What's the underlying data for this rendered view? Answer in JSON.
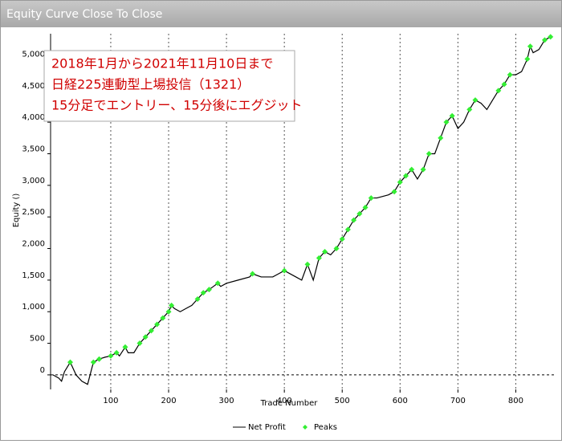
{
  "window_title": "Equity Curve Close To Close",
  "chart_data": {
    "type": "line",
    "annotation": [
      "2018年1月から2021年11月10日まで",
      "日経225連動型上場投信（1321）",
      "15分足でエントリー、15分後にエグジット"
    ],
    "xlabel": "Trade Number",
    "ylabel": "Equity ()",
    "xlim": [
      -4,
      866
    ],
    "ylim": [
      -230,
      5400
    ],
    "xticks": [
      100,
      200,
      300,
      400,
      500,
      600,
      700,
      800
    ],
    "yticks": [
      0,
      500,
      {
        "value": 1000,
        "label": "1,000"
      },
      {
        "value": 1500,
        "label": "1,500"
      },
      {
        "value": 2000,
        "label": "2,000"
      },
      {
        "value": 2500,
        "label": "2,500"
      },
      {
        "value": 3000,
        "label": "3,000"
      },
      {
        "value": 3500,
        "label": "3,500"
      },
      {
        "value": 4000,
        "label": "4,000"
      },
      {
        "value": 4500,
        "label": "4,500"
      },
      {
        "value": 5000,
        "label": "5,000"
      }
    ],
    "grid": "x",
    "series": [
      {
        "name": "Net Profit",
        "type": "line",
        "color": "#000000",
        "x": [
          0,
          10,
          15,
          20,
          30,
          40,
          50,
          60,
          70,
          80,
          90,
          100,
          110,
          115,
          125,
          130,
          140,
          150,
          160,
          170,
          180,
          190,
          200,
          205,
          210,
          220,
          230,
          240,
          250,
          260,
          270,
          285,
          290,
          300,
          320,
          340,
          345,
          360,
          380,
          390,
          400,
          420,
          430,
          440,
          450,
          460,
          470,
          480,
          490,
          500,
          510,
          520,
          530,
          540,
          550,
          560,
          580,
          590,
          600,
          610,
          620,
          630,
          640,
          650,
          660,
          670,
          680,
          690,
          700,
          710,
          720,
          730,
          740,
          750,
          760,
          770,
          780,
          790,
          800,
          810,
          820,
          825,
          830,
          840,
          850,
          860
        ],
        "values": [
          0,
          -50,
          -100,
          50,
          200,
          0,
          -100,
          -150,
          200,
          250,
          280,
          300,
          350,
          300,
          440,
          350,
          350,
          500,
          600,
          700,
          800,
          900,
          1000,
          1100,
          1050,
          1000,
          1050,
          1100,
          1200,
          1300,
          1350,
          1450,
          1400,
          1450,
          1500,
          1550,
          1600,
          1550,
          1550,
          1600,
          1650,
          1550,
          1500,
          1750,
          1500,
          1850,
          1950,
          1900,
          2000,
          2150,
          2300,
          2450,
          2550,
          2650,
          2800,
          2800,
          2850,
          2900,
          3050,
          3150,
          3250,
          3100,
          3250,
          3500,
          3500,
          3750,
          4000,
          4100,
          3900,
          4000,
          4200,
          4350,
          4300,
          4200,
          4350,
          4500,
          4600,
          4750,
          4750,
          4800,
          5000,
          5200,
          5100,
          5150,
          5300,
          5350
        ]
      },
      {
        "name": "Peaks",
        "type": "scatter",
        "color": "#33ee33",
        "x": [
          30,
          70,
          80,
          100,
          110,
          125,
          150,
          160,
          170,
          180,
          190,
          200,
          205,
          250,
          260,
          270,
          285,
          345,
          400,
          440,
          460,
          470,
          490,
          500,
          510,
          520,
          530,
          540,
          550,
          590,
          600,
          610,
          620,
          640,
          650,
          670,
          680,
          690,
          720,
          730,
          770,
          780,
          790,
          820,
          825,
          850,
          860
        ],
        "values": [
          200,
          200,
          250,
          300,
          350,
          440,
          500,
          600,
          700,
          800,
          900,
          1000,
          1100,
          1200,
          1300,
          1350,
          1450,
          1600,
          1650,
          1750,
          1850,
          1950,
          2000,
          2150,
          2300,
          2450,
          2550,
          2650,
          2800,
          2900,
          3050,
          3150,
          3250,
          3250,
          3500,
          3750,
          4000,
          4100,
          4200,
          4350,
          4500,
          4600,
          4750,
          5000,
          5200,
          5300,
          5350
        ]
      }
    ]
  }
}
